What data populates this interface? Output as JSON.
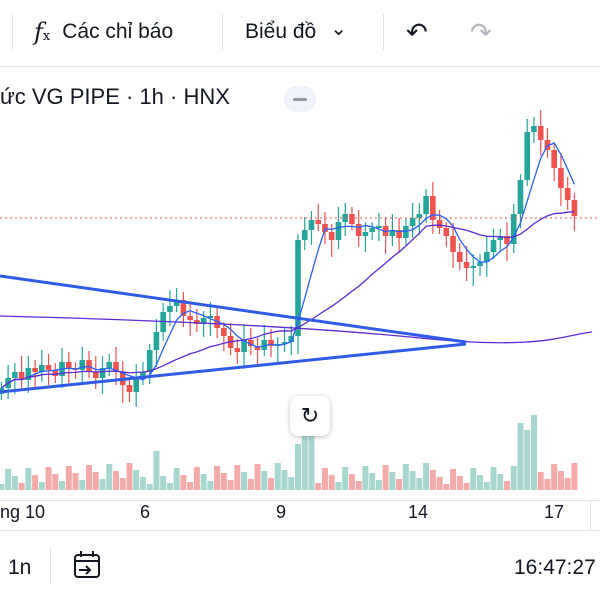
{
  "toolbar": {
    "indicators_label": "Các chỉ báo",
    "chart_type_label": "Biểu đồ",
    "fx_icon": "f",
    "fx_sub": "x",
    "chevron": "⌄",
    "undo": "↶",
    "redo": "↷"
  },
  "legend": {
    "text": "ức VG PIPE · 1h · HNX"
  },
  "reset_icon": "↻",
  "xaxis": {
    "label_1": "ng 10",
    "label_2": "6",
    "label_3": "9",
    "label_4": "14",
    "label_5": "17"
  },
  "bottom": {
    "interval": "1n",
    "time": "16:47:27"
  },
  "colors": {
    "up": "#26a69a",
    "down": "#ef5350",
    "trendline": "#2f5ce6",
    "ma_fast": "#2962ff",
    "ma_slow": "#5b2bd4",
    "vol_up": "#a7d7cf",
    "vol_down": "#f2aaaa",
    "price_line": "#ef5350"
  }
}
